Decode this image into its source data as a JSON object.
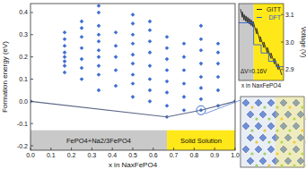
{
  "chart_data": [
    {
      "type": "scatter",
      "xlabel": "x in NaxFePO4",
      "ylabel": "Formation energy (eV)",
      "xlim": [
        0,
        1
      ],
      "ylim": [
        -0.22,
        0.44
      ],
      "xticks": [
        {
          "value": 0,
          "label": "0.0"
        },
        0.1,
        0.2,
        0.3,
        0.4,
        0.5,
        0.6,
        0.7,
        0.8,
        0.9,
        {
          "value": 1,
          "label": "1.0"
        }
      ],
      "yticks": [
        -0.2,
        -0.1,
        {
          "value": 0,
          "label": "0.0"
        },
        0.1,
        0.2,
        0.3,
        0.4
      ],
      "regions": [
        {
          "label": "FePO4+Na2/3FePO4",
          "x": [
            0,
            0.6667
          ],
          "y": [
            -0.22,
            -0.13
          ],
          "color": "#c9c9c9"
        },
        {
          "label": "Solid Solution",
          "x": [
            0.6667,
            1
          ],
          "y": [
            -0.22,
            -0.13
          ],
          "color": "#ffe81a"
        }
      ],
      "series": [
        {
          "type": "scatter",
          "marker": "diamond",
          "color": "#3f6fd1",
          "x": [
            0,
            0.1667,
            0.1667,
            0.1667,
            0.1667,
            0.1667,
            0.1667,
            0.1667,
            0.1667,
            0.25,
            0.25,
            0.25,
            0.25,
            0.25,
            0.25,
            0.25,
            0.3333,
            0.3333,
            0.3333,
            0.3333,
            0.3333,
            0.3333,
            0.3333,
            0.3333,
            0.3333,
            0.3333,
            0.4167,
            0.4167,
            0.4167,
            0.4167,
            0.4167,
            0.5,
            0.5,
            0.5,
            0.5,
            0.5,
            0.5,
            0.5,
            0.5,
            0.5,
            0.5833,
            0.5833,
            0.5833,
            0.5833,
            0.5833,
            0.5833,
            0.5833,
            0.5833,
            0.6667,
            0.6667,
            0.6667,
            0.6667,
            0.6667,
            0.6667,
            0.6667,
            0.6667,
            0.75,
            0.75,
            0.75,
            0.75,
            0.75,
            0.75,
            0.8333,
            0.8333,
            0.8333,
            0.8333,
            0.8333,
            0.8333,
            0.8333,
            0.8333,
            0.9167,
            0.9167,
            0.9167,
            0.9167,
            0.9167,
            0.9167,
            1
          ],
          "values": [
            0,
            0.13,
            0.16,
            0.18,
            0.2,
            0.22,
            0.25,
            0.28,
            0.31,
            0.1,
            0.15,
            0.19,
            0.24,
            0.29,
            0.33,
            0.36,
            0.05,
            0.12,
            0.16,
            0.2,
            0.23,
            0.27,
            0.3,
            0.34,
            0.4,
            0.43,
            0.07,
            0.14,
            0.2,
            0.25,
            0.31,
            0.02,
            0.08,
            0.12,
            0.17,
            0.21,
            0.26,
            0.3,
            0.35,
            0.39,
            0.0,
            0.05,
            0.1,
            0.16,
            0.22,
            0.27,
            0.32,
            0.36,
            -0.07,
            -0.02,
            0.04,
            0.09,
            0.14,
            0.19,
            0.24,
            0.29,
            -0.04,
            0.02,
            0.08,
            0.14,
            0.2,
            0.26,
            -0.04,
            0.01,
            0.06,
            0.11,
            0.17,
            0.23,
            0.28,
            0.34,
            -0.02,
            0.05,
            0.11,
            0.17,
            0.22,
            0.26,
            0
          ]
        },
        {
          "type": "line",
          "line_style": "solid",
          "color": "#5b6785",
          "x": [
            0,
            0.6667,
            0.8333,
            1
          ],
          "values": [
            0,
            -0.07,
            -0.04,
            0
          ]
        },
        {
          "type": "scatter",
          "marker": "open-circle",
          "color": "#3f6fd1",
          "x": [
            0.8333
          ],
          "values": [
            -0.04
          ]
        }
      ]
    },
    {
      "type": "line",
      "xlabel": "x in NaxFePO4",
      "ylabel": "Voltage (V)",
      "xlim": [
        0.5,
        1
      ],
      "ylim": [
        2.86,
        3.14
      ],
      "yticks": [
        2.9,
        {
          "value": 3,
          "label": "3.0"
        },
        3.1
      ],
      "tick_labels": "y",
      "legend": "upper right",
      "regions": [
        {
          "x": [
            0.5,
            0.6667
          ],
          "color": "#c9c9c9"
        },
        {
          "x": [
            0.6667,
            1
          ],
          "color": "#ffe81a"
        }
      ],
      "annotations": [
        {
          "text": "ΔV=0.16V",
          "x": 0.52,
          "y": 2.885
        }
      ],
      "series": [
        {
          "name": "GITT",
          "color": "#222222",
          "line_style": "solid",
          "x": [
            0.52,
            0.54,
            0.54,
            0.56,
            0.56,
            0.58,
            0.58,
            0.6,
            0.6,
            0.62,
            0.62,
            0.64,
            0.64,
            0.66,
            0.66,
            0.7,
            0.7,
            0.74,
            0.74,
            0.78,
            0.78,
            0.82,
            0.82,
            0.86,
            0.86,
            0.9,
            0.9,
            0.94,
            0.94,
            0.98
          ],
          "values": [
            3.12,
            3.09,
            3.11,
            3.08,
            3.1,
            3.075,
            3.095,
            3.07,
            3.09,
            3.065,
            3.085,
            3.06,
            3.08,
            3.055,
            3.075,
            3.03,
            3.05,
            3.0,
            3.02,
            2.98,
            3.0,
            2.96,
            2.98,
            2.94,
            2.96,
            2.92,
            2.94,
            2.9,
            2.92,
            2.88
          ]
        },
        {
          "name": "DFT",
          "color": "#2f5fd0",
          "line_style": "solid",
          "x": [
            0.5,
            0.6667,
            0.6667,
            0.75,
            0.75,
            0.8333,
            0.8333,
            0.9167,
            0.9167,
            1
          ],
          "values": [
            3.07,
            3.07,
            2.99,
            2.99,
            2.96,
            2.96,
            2.93,
            2.93,
            2.91,
            2.91
          ]
        }
      ]
    }
  ]
}
